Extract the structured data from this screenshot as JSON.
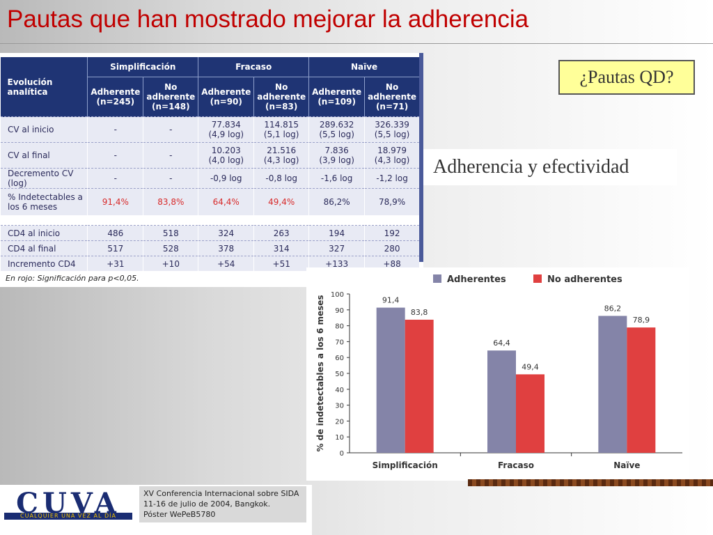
{
  "slide": {
    "title": "Pautas que han mostrado mejorar la adherencia"
  },
  "table": {
    "corner": "Evolución analítica",
    "groups": [
      "Simplificación",
      "Fracaso",
      "Naïve"
    ],
    "subheaders": [
      {
        "l1": "Adherente",
        "l2": "(n=245)"
      },
      {
        "l1": "No adherente",
        "l2": "(n=148)"
      },
      {
        "l1": "Adherente",
        "l2": "(n=90)"
      },
      {
        "l1": "No adherente",
        "l2": "(n=83)"
      },
      {
        "l1": "Adherente",
        "l2": "(n=109)"
      },
      {
        "l1": "No adherente",
        "l2": "(n=71)"
      }
    ],
    "rows": [
      {
        "label": "CV al inicio",
        "cells": [
          {
            "v": "-"
          },
          {
            "v": "-"
          },
          {
            "v": "77.834",
            "s": "(4,9 log)"
          },
          {
            "v": "114.815",
            "s": "(5,1 log)"
          },
          {
            "v": "289.632",
            "s": "(5,5 log)"
          },
          {
            "v": "326.339",
            "s": "(5,5 log)"
          }
        ]
      },
      {
        "label": "CV al final",
        "cells": [
          {
            "v": "-"
          },
          {
            "v": "-"
          },
          {
            "v": "10.203",
            "s": "(4,0 log)"
          },
          {
            "v": "21.516",
            "s": "(4,3 log)"
          },
          {
            "v": "7.836",
            "s": "(3,9 log)"
          },
          {
            "v": "18.979",
            "s": "(4,3 log)"
          }
        ]
      },
      {
        "label": "Decremento CV (log)",
        "cells": [
          {
            "v": "-"
          },
          {
            "v": "-"
          },
          {
            "v": "-0,9 log"
          },
          {
            "v": "-0,8 log"
          },
          {
            "v": "-1,6 log"
          },
          {
            "v": "-1,2 log"
          }
        ]
      },
      {
        "label": "% Indetectables a los 6 meses",
        "red": [
          0,
          1,
          2,
          3
        ],
        "cells": [
          {
            "v": "91,4%"
          },
          {
            "v": "83,8%"
          },
          {
            "v": "64,4%"
          },
          {
            "v": "49,4%"
          },
          {
            "v": "86,2%"
          },
          {
            "v": "78,9%"
          }
        ]
      }
    ],
    "rows2": [
      {
        "label": "CD4 al inicio",
        "cells": [
          {
            "v": "486"
          },
          {
            "v": "518"
          },
          {
            "v": "324"
          },
          {
            "v": "263"
          },
          {
            "v": "194"
          },
          {
            "v": "192"
          }
        ]
      },
      {
        "label": "CD4 al final",
        "cells": [
          {
            "v": "517"
          },
          {
            "v": "528"
          },
          {
            "v": "378"
          },
          {
            "v": "314"
          },
          {
            "v": "327"
          },
          {
            "v": "280"
          }
        ]
      },
      {
        "label": "Incremento CD4",
        "cells": [
          {
            "v": "+31"
          },
          {
            "v": "+10"
          },
          {
            "v": "+54"
          },
          {
            "v": "+51"
          },
          {
            "v": "+133"
          },
          {
            "v": "+88"
          }
        ]
      }
    ],
    "note": "En rojo: Significación para p<0,05."
  },
  "callout_qd": "¿Pautas QD?",
  "callout_adh": "Adherencia y efectividad",
  "chart_data": {
    "type": "bar",
    "categories": [
      "Simplificación",
      "Fracaso",
      "Naïve"
    ],
    "series": [
      {
        "name": "Adherentes",
        "color": "#8484a8",
        "values": [
          91.4,
          64.4,
          86.2
        ],
        "labels": [
          "91,4",
          "64,4",
          "86,2"
        ]
      },
      {
        "name": "No adherentes",
        "color": "#e04040",
        "values": [
          83.8,
          49.4,
          78.9
        ],
        "labels": [
          "83,8",
          "49,4",
          "78,9"
        ]
      }
    ],
    "ylabel": "% de indetectables a los 6 meses",
    "ylim": [
      0,
      100
    ],
    "yticks": [
      0,
      10,
      20,
      30,
      40,
      50,
      60,
      70,
      80,
      90,
      100
    ],
    "legend": "top",
    "grid": false
  },
  "footer": {
    "logo_text": "CUVA",
    "logo_tagline": "CUALQUIER UNA VEZ AL DÍA",
    "conference_lines": [
      "XV Conferencia Internacional sobre SIDA",
      "11-16 de julio de 2004, Bangkok.",
      "Póster WePeB5780"
    ]
  }
}
